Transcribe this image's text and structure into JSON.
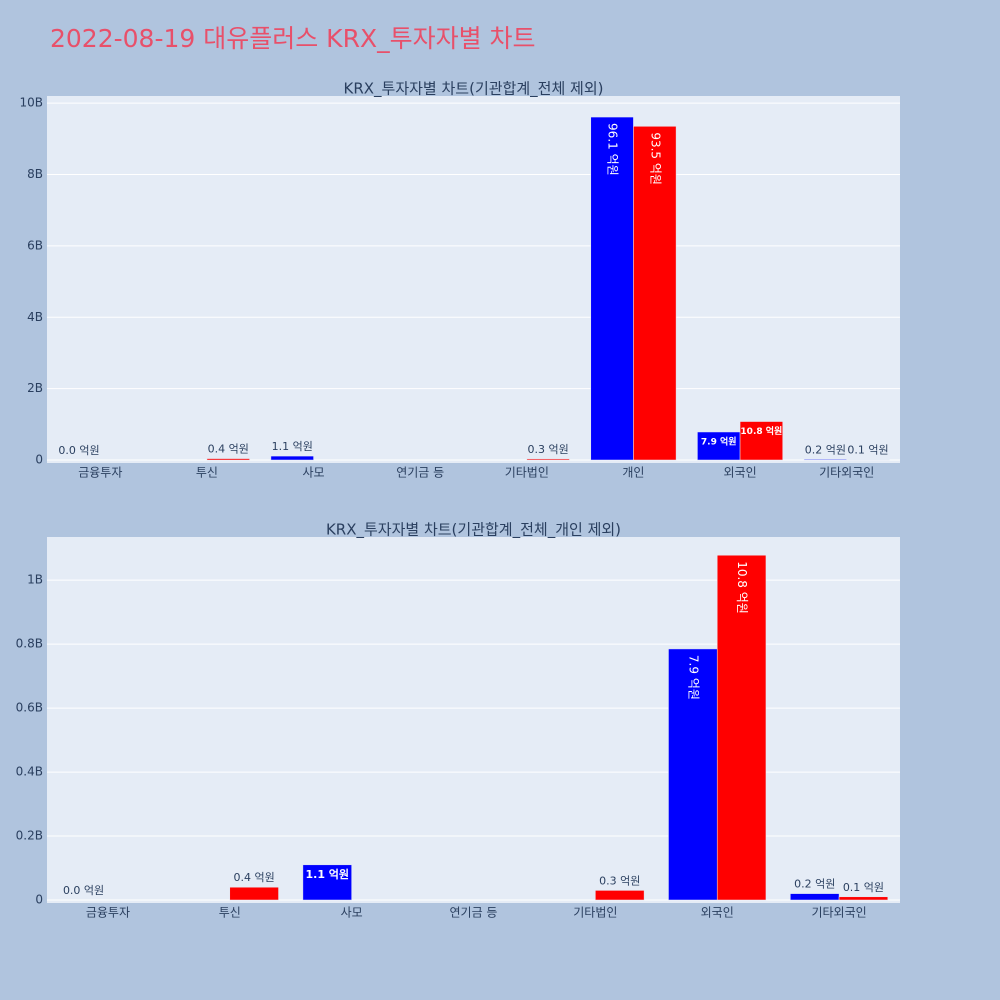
{
  "title": "2022-08-19 대유플러스 KRX_투자자별 차트",
  "chart_data": [
    {
      "type": "bar",
      "title": "KRX_투자자별 차트(기관합계_전체 제외)",
      "categories": [
        "금융투자",
        "투신",
        "사모",
        "연기금 등",
        "기타법인",
        "개인",
        "외국인",
        "기타외국인"
      ],
      "series": [
        {
          "color": "#0000ff",
          "values": [
            0,
            null,
            110000000,
            null,
            null,
            9610000000,
            785000000,
            20000000
          ],
          "value_labels": [
            "0.0 억원",
            null,
            "1.1 억원",
            null,
            null,
            "96.1 억원",
            "7.9 억원",
            "0.2 억원"
          ]
        },
        {
          "color": "#ff0000",
          "values": [
            null,
            40000000,
            null,
            null,
            30000000,
            9350000000,
            1078000000,
            10000000
          ],
          "value_labels": [
            null,
            "0.4 억원",
            null,
            null,
            "0.3 억원",
            "93.5 억원",
            "10.8 억원",
            "0.1 억원"
          ]
        }
      ],
      "ylim": [
        0,
        10200000000
      ],
      "yticks": [
        0,
        {
          "value": 2000000000,
          "label": "2B"
        },
        {
          "value": 4000000000,
          "label": "4B"
        },
        {
          "value": 6000000000,
          "label": "6B"
        },
        {
          "value": 8000000000,
          "label": "8B"
        },
        {
          "value": 10000000000,
          "label": "10B"
        }
      ],
      "grid": true
    },
    {
      "type": "bar",
      "title": "KRX_투자자별 차트(기관합계_전체_개인 제외)",
      "categories": [
        "금융투자",
        "투신",
        "사모",
        "연기금 등",
        "기타법인",
        "외국인",
        "기타외국인"
      ],
      "series": [
        {
          "color": "#0000ff",
          "values": [
            0,
            null,
            110000000,
            null,
            null,
            785000000,
            20000000
          ],
          "value_labels": [
            "0.0 억원",
            null,
            "1.1 억원",
            null,
            null,
            "7.9 억원",
            "0.2 억원"
          ]
        },
        {
          "color": "#ff0000",
          "values": [
            null,
            40000000,
            null,
            null,
            30000000,
            1078000000,
            10000000
          ],
          "value_labels": [
            null,
            "0.4 억원",
            null,
            null,
            "0.3 억원",
            "10.8 억원",
            "0.1 억원"
          ]
        }
      ],
      "ylim": [
        0,
        1135000000
      ],
      "yticks": [
        0,
        {
          "value": 200000000,
          "label": "0.2B"
        },
        {
          "value": 400000000,
          "label": "0.4B"
        },
        {
          "value": 600000000,
          "label": "0.6B"
        },
        {
          "value": 800000000,
          "label": "0.8B"
        },
        {
          "value": 1000000000,
          "label": "1B"
        }
      ],
      "grid": true
    }
  ]
}
